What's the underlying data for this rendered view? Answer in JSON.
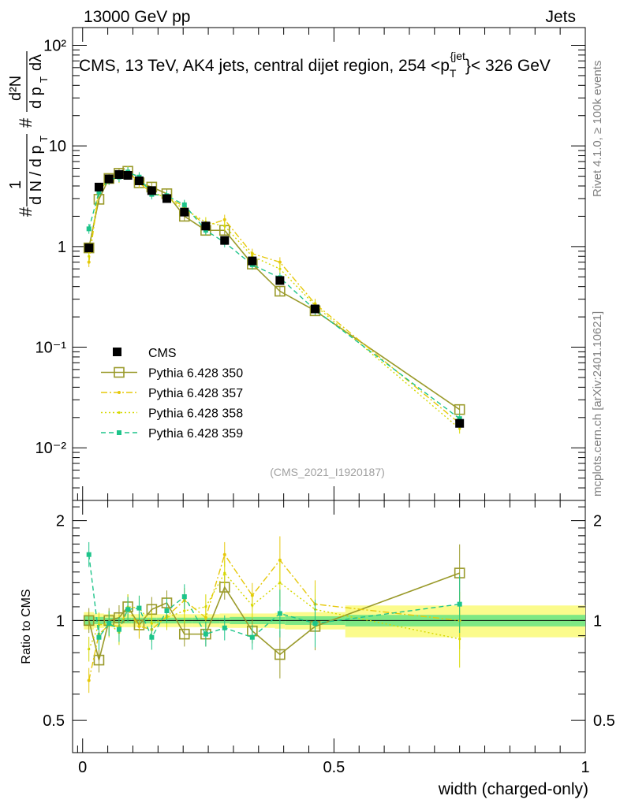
{
  "header": {
    "left": "13000 GeV pp",
    "right": "Jets"
  },
  "side": {
    "rivet": "Rivet 4.1.0, ≥ 100k events",
    "site": "mcplots.cern.ch [arXiv:2401.10621]"
  },
  "colors": {
    "cms": "#000000",
    "p350": "#9a9a2a",
    "p357": "#e6c80a",
    "p358": "#d6d800",
    "p359": "#1dc48a",
    "band_stat": "#7ee884",
    "band_tot": "#fbfb8c"
  },
  "chart_data": [
    {
      "type": "line",
      "panel": "main",
      "title": "CMS, 13 TeV, AK4 jets, central dijet region, 254 <p_T^{jet}< 326 GeV",
      "ylabel": "1/dN/dpT # d²N/dpT dλ",
      "xlabel": "",
      "ylim": [
        0.003,
        150
      ],
      "yscale": "log",
      "xlim": [
        -0.02,
        1.0
      ],
      "watermark": "(CMS_2021_I1920187)",
      "ytick_labels": [
        "10⁻²",
        "10⁻¹",
        "1",
        "10",
        "10²"
      ],
      "ytick_values": [
        0.01,
        0.1,
        1,
        10,
        100
      ],
      "legend_position": "lower-left",
      "series": [
        {
          "name": "CMS",
          "style": "marker",
          "x": [
            0.0125,
            0.0325,
            0.0525,
            0.0725,
            0.09,
            0.1125,
            0.1375,
            0.1675,
            0.2025,
            0.245,
            0.2825,
            0.3375,
            0.3925,
            0.4625,
            0.75
          ],
          "values": [
            0.97,
            3.9,
            4.7,
            5.2,
            5.1,
            4.5,
            3.6,
            3.0,
            2.2,
            1.6,
            1.15,
            0.72,
            0.46,
            0.24,
            0.0175
          ]
        },
        {
          "name": "Pythia 6.428 350",
          "style": "solid-open-square",
          "x": [
            0.0125,
            0.0325,
            0.0525,
            0.0725,
            0.09,
            0.1125,
            0.1375,
            0.1675,
            0.2025,
            0.245,
            0.2825,
            0.3375,
            0.3925,
            0.4625,
            0.75
          ],
          "values": [
            0.97,
            2.95,
            4.75,
            5.35,
            5.6,
            4.3,
            3.9,
            3.35,
            2.0,
            1.45,
            1.45,
            0.67,
            0.36,
            0.23,
            0.024
          ]
        },
        {
          "name": "Pythia 6.428 357",
          "style": "dash-dot",
          "x": [
            0.0125,
            0.0325,
            0.0525,
            0.0725,
            0.09,
            0.1125,
            0.1375,
            0.1675,
            0.2025,
            0.245,
            0.2825,
            0.3375,
            0.3925,
            0.4625,
            0.75
          ],
          "values": [
            0.7,
            3.6,
            4.6,
            5.0,
            5.5,
            4.3,
            3.4,
            3.1,
            2.5,
            1.6,
            1.85,
            0.85,
            0.7,
            0.27,
            0.0175
          ]
        },
        {
          "name": "Pythia 6.428 358",
          "style": "dotted",
          "x": [
            0.0125,
            0.0325,
            0.0525,
            0.0725,
            0.09,
            0.1125,
            0.1375,
            0.1675,
            0.2025,
            0.245,
            0.2825,
            0.3375,
            0.3925,
            0.4625,
            0.75
          ],
          "values": [
            0.8,
            3.8,
            4.6,
            4.8,
            5.6,
            4.9,
            3.5,
            3.05,
            2.35,
            1.75,
            1.6,
            0.8,
            0.6,
            0.26,
            0.0155
          ]
        },
        {
          "name": "Pythia 6.428 359",
          "style": "dashed-filled-square",
          "x": [
            0.0125,
            0.0325,
            0.0525,
            0.0725,
            0.09,
            0.1125,
            0.1375,
            0.1675,
            0.2025,
            0.245,
            0.2825,
            0.3375,
            0.3925,
            0.4625,
            0.75
          ],
          "values": [
            1.5,
            3.5,
            4.6,
            4.9,
            5.5,
            4.9,
            3.3,
            3.2,
            2.6,
            1.45,
            1.1,
            0.66,
            0.49,
            0.235,
            0.0195
          ]
        }
      ]
    },
    {
      "type": "line",
      "panel": "ratio",
      "ylabel": "Ratio to CMS",
      "xlabel": "width (charged-only)",
      "ylim": [
        0.4,
        2.3
      ],
      "yscale": "log",
      "xlim": [
        -0.02,
        1.0
      ],
      "ytick_labels": [
        "0.5",
        "1",
        "2"
      ],
      "ytick_values": [
        0.5,
        1,
        2
      ],
      "xtick_labels": [
        "0",
        "0.5",
        "1"
      ],
      "xtick_values": [
        0,
        0.5,
        1
      ],
      "band_edges": [
        0.0025,
        0.0225,
        0.0425,
        0.0625,
        0.0825,
        0.0975,
        0.1275,
        0.1475,
        0.1875,
        0.2175,
        0.2725,
        0.2925,
        0.3825,
        0.4025,
        0.5225,
        1.0
      ],
      "band_stat_half": [
        0.03,
        0.025,
        0.02,
        0.02,
        0.02,
        0.02,
        0.02,
        0.02,
        0.02,
        0.02,
        0.02,
        0.025,
        0.025,
        0.03,
        0.04
      ],
      "band_total_half": [
        0.06,
        0.05,
        0.045,
        0.045,
        0.045,
        0.045,
        0.045,
        0.045,
        0.045,
        0.045,
        0.05,
        0.05,
        0.055,
        0.06,
        0.11
      ],
      "series": [
        {
          "name": "Pythia 6.428 350",
          "x": [
            0.0125,
            0.0325,
            0.0525,
            0.0725,
            0.09,
            0.1125,
            0.1375,
            0.1675,
            0.2025,
            0.245,
            0.2825,
            0.3375,
            0.3925,
            0.4625,
            0.75
          ],
          "values": [
            1.0,
            0.76,
            1.0,
            1.02,
            1.1,
            0.97,
            1.08,
            1.13,
            0.91,
            0.91,
            1.26,
            0.93,
            0.79,
            0.96,
            1.39
          ]
        },
        {
          "name": "Pythia 6.428 357",
          "x": [
            0.0125,
            0.0325,
            0.0525,
            0.0725,
            0.09,
            0.1125,
            0.1375,
            0.1675,
            0.2025,
            0.245,
            0.2825,
            0.3375,
            0.3925,
            0.4625,
            0.75
          ],
          "values": [
            0.66,
            0.91,
            0.97,
            0.96,
            1.08,
            0.96,
            0.94,
            1.03,
            1.15,
            1.02,
            1.58,
            1.19,
            1.52,
            1.12,
            1.0
          ]
        },
        {
          "name": "Pythia 6.428 358",
          "x": [
            0.0125,
            0.0325,
            0.0525,
            0.0725,
            0.09,
            0.1125,
            0.1375,
            0.1675,
            0.2025,
            0.245,
            0.2825,
            0.3375,
            0.3925,
            0.4625,
            0.75
          ],
          "values": [
            0.82,
            0.97,
            0.98,
            0.92,
            1.1,
            1.09,
            0.98,
            1.02,
            1.07,
            1.1,
            1.39,
            1.11,
            1.3,
            1.08,
            0.88
          ]
        },
        {
          "name": "Pythia 6.428 359",
          "x": [
            0.0125,
            0.0325,
            0.0525,
            0.0725,
            0.09,
            0.1125,
            0.1375,
            0.1675,
            0.2025,
            0.245,
            0.2825,
            0.3375,
            0.3925,
            0.4625,
            0.75
          ],
          "values": [
            1.58,
            0.89,
            0.98,
            0.94,
            1.08,
            1.09,
            0.89,
            1.07,
            1.18,
            0.91,
            0.95,
            0.89,
            1.05,
            0.98,
            1.12
          ]
        }
      ]
    }
  ]
}
